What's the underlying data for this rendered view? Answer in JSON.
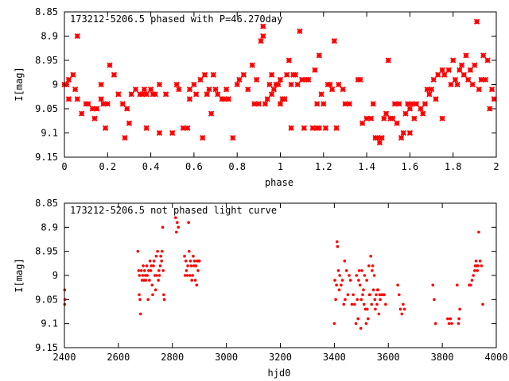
{
  "chart_data": [
    {
      "type": "scatter",
      "title": "173212-5206.5 phased with P=46.270day",
      "xlabel": "phase",
      "ylabel": "I[mag]",
      "xlim": [
        0,
        2
      ],
      "ylim": [
        8.85,
        9.15
      ],
      "y_inverted": true,
      "grid": false,
      "color": "#ff0000",
      "marker": "asterisk",
      "xticks": [
        0,
        0.2,
        0.4,
        0.6,
        0.8,
        1,
        1.2,
        1.4,
        1.6,
        1.8,
        2
      ],
      "xtick_labels": [
        "0",
        "0.2",
        "0.4",
        "0.6",
        "0.8",
        "1",
        "1.2",
        "1.4",
        "1.6",
        "1.8",
        "2"
      ],
      "yticks": [
        8.85,
        8.9,
        8.95,
        9,
        9.05,
        9.1,
        9.15
      ],
      "ytick_labels": [
        "8.85",
        "8.9",
        "8.95",
        "9",
        "9.05",
        "9.1",
        "9.15"
      ],
      "points": [
        [
          0.0,
          9.0
        ],
        [
          0.01,
          9.0
        ],
        [
          0.02,
          8.99
        ],
        [
          0.02,
          9.03
        ],
        [
          0.04,
          8.98
        ],
        [
          0.05,
          9.01
        ],
        [
          0.06,
          8.9
        ],
        [
          0.06,
          9.03
        ],
        [
          0.08,
          9.06
        ],
        [
          0.1,
          9.04
        ],
        [
          0.11,
          9.04
        ],
        [
          0.13,
          9.05
        ],
        [
          0.14,
          9.07
        ],
        [
          0.15,
          9.05
        ],
        [
          0.17,
          9.0
        ],
        [
          0.17,
          9.03
        ],
        [
          0.18,
          9.04
        ],
        [
          0.19,
          9.09
        ],
        [
          0.2,
          9.04
        ],
        [
          0.21,
          8.96
        ],
        [
          0.23,
          8.98
        ],
        [
          0.25,
          9.02
        ],
        [
          0.27,
          9.04
        ],
        [
          0.28,
          9.11
        ],
        [
          0.29,
          9.05
        ],
        [
          0.3,
          9.08
        ],
        [
          0.31,
          9.02
        ],
        [
          0.33,
          9.01
        ],
        [
          0.35,
          9.02
        ],
        [
          0.36,
          9.02
        ],
        [
          0.37,
          9.01
        ],
        [
          0.38,
          9.09
        ],
        [
          0.38,
          9.02
        ],
        [
          0.4,
          9.01
        ],
        [
          0.41,
          9.02
        ],
        [
          0.42,
          9.02
        ],
        [
          0.44,
          9.0
        ],
        [
          0.44,
          9.1
        ],
        [
          0.47,
          9.02
        ],
        [
          0.5,
          9.1
        ],
        [
          0.52,
          9.0
        ],
        [
          0.53,
          9.01
        ],
        [
          0.55,
          9.09
        ],
        [
          0.57,
          9.09
        ],
        [
          0.58,
          9.01
        ],
        [
          0.58,
          9.03
        ],
        [
          0.6,
          9.0
        ],
        [
          0.61,
          9.02
        ],
        [
          0.63,
          8.99
        ],
        [
          0.64,
          9.11
        ],
        [
          0.65,
          8.98
        ],
        [
          0.66,
          9.02
        ],
        [
          0.67,
          9.01
        ],
        [
          0.68,
          9.06
        ],
        [
          0.69,
          8.98
        ],
        [
          0.7,
          9.01
        ],
        [
          0.71,
          9.02
        ],
        [
          0.73,
          9.03
        ],
        [
          0.74,
          9.03
        ],
        [
          0.75,
          9.01
        ],
        [
          0.76,
          9.03
        ],
        [
          0.78,
          9.11
        ],
        [
          0.8,
          9.0
        ],
        [
          0.81,
          8.99
        ],
        [
          0.83,
          8.98
        ],
        [
          0.85,
          9.01
        ],
        [
          0.87,
          8.96
        ],
        [
          0.88,
          9.04
        ],
        [
          0.89,
          8.99
        ],
        [
          0.9,
          9.04
        ],
        [
          0.91,
          8.91
        ],
        [
          0.92,
          8.88
        ],
        [
          0.92,
          8.9
        ],
        [
          0.93,
          9.04
        ],
        [
          0.94,
          9.03
        ],
        [
          0.95,
          9.0
        ],
        [
          0.96,
          8.98
        ],
        [
          0.96,
          9.02
        ],
        [
          0.97,
          9.01
        ],
        [
          0.98,
          9.0
        ],
        [
          0.99,
          9.0
        ],
        [
          1.0,
          8.99
        ],
        [
          1.0,
          9.04
        ],
        [
          1.01,
          9.03
        ],
        [
          1.02,
          9.03
        ],
        [
          1.03,
          8.98
        ],
        [
          1.04,
          8.95
        ],
        [
          1.05,
          9.09
        ],
        [
          1.05,
          9.0
        ],
        [
          1.06,
          8.98
        ],
        [
          1.07,
          8.98
        ],
        [
          1.08,
          9.0
        ],
        [
          1.09,
          8.89
        ],
        [
          1.1,
          8.99
        ],
        [
          1.11,
          9.09
        ],
        [
          1.12,
          8.99
        ],
        [
          1.13,
          8.99
        ],
        [
          1.15,
          9.09
        ],
        [
          1.16,
          8.97
        ],
        [
          1.17,
          9.09
        ],
        [
          1.17,
          9.04
        ],
        [
          1.18,
          9.09
        ],
        [
          1.18,
          8.94
        ],
        [
          1.19,
          9.02
        ],
        [
          1.2,
          9.04
        ],
        [
          1.21,
          9.09
        ],
        [
          1.22,
          9.0
        ],
        [
          1.23,
          9.0
        ],
        [
          1.24,
          9.01
        ],
        [
          1.25,
          8.91
        ],
        [
          1.26,
          9.09
        ],
        [
          1.27,
          9.0
        ],
        [
          1.29,
          9.01
        ],
        [
          1.3,
          9.04
        ],
        [
          1.32,
          9.04
        ],
        [
          1.36,
          8.99
        ],
        [
          1.37,
          8.99
        ],
        [
          1.38,
          9.08
        ],
        [
          1.4,
          9.07
        ],
        [
          1.42,
          9.07
        ],
        [
          1.43,
          9.04
        ],
        [
          1.44,
          9.11
        ],
        [
          1.45,
          9.11
        ],
        [
          1.46,
          9.12
        ],
        [
          1.47,
          9.11
        ],
        [
          1.48,
          9.07
        ],
        [
          1.49,
          9.06
        ],
        [
          1.5,
          8.95
        ],
        [
          1.51,
          9.07
        ],
        [
          1.52,
          9.07
        ],
        [
          1.53,
          9.04
        ],
        [
          1.54,
          9.08
        ],
        [
          1.55,
          9.04
        ],
        [
          1.56,
          9.11
        ],
        [
          1.57,
          9.1
        ],
        [
          1.58,
          9.06
        ],
        [
          1.59,
          9.04
        ],
        [
          1.6,
          9.05
        ],
        [
          1.6,
          9.1
        ],
        [
          1.61,
          9.04
        ],
        [
          1.62,
          9.07
        ],
        [
          1.63,
          9.04
        ],
        [
          1.65,
          9.05
        ],
        [
          1.66,
          9.06
        ],
        [
          1.67,
          9.04
        ],
        [
          1.68,
          9.01
        ],
        [
          1.69,
          9.02
        ],
        [
          1.7,
          9.01
        ],
        [
          1.71,
          8.99
        ],
        [
          1.72,
          9.03
        ],
        [
          1.73,
          8.98
        ],
        [
          1.75,
          8.97
        ],
        [
          1.75,
          9.07
        ],
        [
          1.76,
          8.98
        ],
        [
          1.78,
          8.97
        ],
        [
          1.79,
          9.0
        ],
        [
          1.8,
          8.95
        ],
        [
          1.81,
          8.99
        ],
        [
          1.82,
          9.0
        ],
        [
          1.83,
          8.97
        ],
        [
          1.84,
          8.96
        ],
        [
          1.85,
          8.98
        ],
        [
          1.86,
          8.94
        ],
        [
          1.87,
          8.99
        ],
        [
          1.88,
          8.97
        ],
        [
          1.89,
          9.0
        ],
        [
          1.9,
          8.96
        ],
        [
          1.91,
          8.87
        ],
        [
          1.92,
          9.01
        ],
        [
          1.93,
          8.99
        ],
        [
          1.94,
          8.94
        ],
        [
          1.95,
          8.99
        ],
        [
          1.96,
          8.95
        ],
        [
          1.97,
          9.05
        ],
        [
          1.98,
          9.01
        ],
        [
          1.99,
          9.03
        ]
      ]
    },
    {
      "type": "scatter",
      "title": "173212-5206.5 not phased light curve",
      "xlabel": "hjd0",
      "ylabel": "I[mag]",
      "xlim": [
        2400,
        4000
      ],
      "ylim": [
        8.85,
        9.15
      ],
      "y_inverted": true,
      "grid": false,
      "color": "#ff0000",
      "marker": "dot",
      "xticks": [
        2400,
        2600,
        2800,
        3000,
        3200,
        3400,
        3600,
        3800,
        4000
      ],
      "xtick_labels": [
        "2400",
        "2600",
        "2800",
        "3000",
        "3200",
        "3400",
        "3600",
        "3800",
        "4000"
      ],
      "yticks": [
        8.85,
        8.9,
        8.95,
        9,
        9.05,
        9.1,
        9.15
      ],
      "ytick_labels": [
        "8.85",
        "8.9",
        "8.95",
        "9",
        "9.05",
        "9.1",
        "9.15"
      ],
      "points": [
        [
          2401,
          9.03
        ],
        [
          2401,
          9.06
        ],
        [
          2402,
          9.05
        ],
        [
          2672,
          8.95
        ],
        [
          2675,
          8.99
        ],
        [
          2677,
          9.04
        ],
        [
          2678,
          9.0
        ],
        [
          2680,
          9.05
        ],
        [
          2682,
          9.08
        ],
        [
          2685,
          8.99
        ],
        [
          2688,
          9.01
        ],
        [
          2690,
          9.0
        ],
        [
          2692,
          8.98
        ],
        [
          2695,
          9.01
        ],
        [
          2697,
          8.99
        ],
        [
          2700,
          9.0
        ],
        [
          2702,
          9.01
        ],
        [
          2705,
          8.98
        ],
        [
          2707,
          9.0
        ],
        [
          2710,
          9.05
        ],
        [
          2712,
          8.99
        ],
        [
          2715,
          9.01
        ],
        [
          2717,
          8.97
        ],
        [
          2720,
          8.99
        ],
        [
          2722,
          8.98
        ],
        [
          2725,
          9.02
        ],
        [
          2727,
          9.04
        ],
        [
          2730,
          8.98
        ],
        [
          2732,
          8.97
        ],
        [
          2735,
          9.0
        ],
        [
          2738,
          9.03
        ],
        [
          2740,
          8.96
        ],
        [
          2742,
          9.0
        ],
        [
          2745,
          8.95
        ],
        [
          2748,
          9.01
        ],
        [
          2750,
          8.99
        ],
        [
          2752,
          9.0
        ],
        [
          2755,
          8.98
        ],
        [
          2757,
          8.96
        ],
        [
          2760,
          8.97
        ],
        [
          2762,
          8.95
        ],
        [
          2764,
          8.9
        ],
        [
          2766,
          8.99
        ],
        [
          2768,
          9.04
        ],
        [
          2770,
          9.05
        ],
        [
          2812,
          8.88
        ],
        [
          2815,
          8.91
        ],
        [
          2818,
          8.89
        ],
        [
          2822,
          8.9
        ],
        [
          2845,
          8.96
        ],
        [
          2847,
          9.0
        ],
        [
          2850,
          8.97
        ],
        [
          2852,
          8.99
        ],
        [
          2855,
          9.0
        ],
        [
          2857,
          8.98
        ],
        [
          2860,
          8.89
        ],
        [
          2862,
          8.95
        ],
        [
          2865,
          9.0
        ],
        [
          2867,
          8.97
        ],
        [
          2870,
          8.98
        ],
        [
          2872,
          9.01
        ],
        [
          2875,
          9.0
        ],
        [
          2877,
          8.96
        ],
        [
          2880,
          8.98
        ],
        [
          2882,
          8.97
        ],
        [
          2885,
          9.01
        ],
        [
          2887,
          8.98
        ],
        [
          2890,
          9.02
        ],
        [
          2892,
          8.97
        ],
        [
          2895,
          8.99
        ],
        [
          2897,
          8.97
        ],
        [
          2900,
          8.97
        ],
        [
          3400,
          9.1
        ],
        [
          3402,
          9.01
        ],
        [
          3405,
          9.05
        ],
        [
          3408,
          9.02
        ],
        [
          3410,
          8.93
        ],
        [
          3412,
          8.94
        ],
        [
          3415,
          8.99
        ],
        [
          3418,
          9.03
        ],
        [
          3420,
          9.0
        ],
        [
          3425,
          9.02
        ],
        [
          3430,
          9.01
        ],
        [
          3435,
          9.06
        ],
        [
          3438,
          8.97
        ],
        [
          3440,
          9.05
        ],
        [
          3445,
          8.99
        ],
        [
          3450,
          9.04
        ],
        [
          3455,
          9.0
        ],
        [
          3460,
          9.01
        ],
        [
          3465,
          9.06
        ],
        [
          3470,
          9.04
        ],
        [
          3475,
          9.06
        ],
        [
          3480,
          9.1
        ],
        [
          3482,
          9.0
        ],
        [
          3485,
          9.05
        ],
        [
          3488,
          9.09
        ],
        [
          3490,
          9.01
        ],
        [
          3492,
          8.99
        ],
        [
          3495,
          9.02
        ],
        [
          3498,
          9.11
        ],
        [
          3500,
          9.05
        ],
        [
          3502,
          8.99
        ],
        [
          3505,
          9.04
        ],
        [
          3508,
          9.03
        ],
        [
          3510,
          9.06
        ],
        [
          3512,
          9.0
        ],
        [
          3515,
          9.07
        ],
        [
          3518,
          9.1
        ],
        [
          3520,
          9.01
        ],
        [
          3522,
          9.07
        ],
        [
          3525,
          9.09
        ],
        [
          3528,
          8.98
        ],
        [
          3530,
          9.04
        ],
        [
          3532,
          9.04
        ],
        [
          3535,
          8.96
        ],
        [
          3538,
          9.06
        ],
        [
          3540,
          8.99
        ],
        [
          3542,
          8.98
        ],
        [
          3545,
          9.03
        ],
        [
          3548,
          9.0
        ],
        [
          3550,
          9.05
        ],
        [
          3552,
          9.07
        ],
        [
          3555,
          9.04
        ],
        [
          3558,
          9.06
        ],
        [
          3560,
          9.03
        ],
        [
          3562,
          9.03
        ],
        [
          3565,
          9.08
        ],
        [
          3568,
          9.04
        ],
        [
          3570,
          9.05
        ],
        [
          3575,
          9.04
        ],
        [
          3580,
          9.04
        ],
        [
          3585,
          9.04
        ],
        [
          3590,
          9.06
        ],
        [
          3635,
          9.02
        ],
        [
          3640,
          9.04
        ],
        [
          3645,
          9.07
        ],
        [
          3650,
          9.08
        ],
        [
          3655,
          9.06
        ],
        [
          3660,
          9.07
        ],
        [
          3765,
          9.02
        ],
        [
          3770,
          9.05
        ],
        [
          3775,
          9.1
        ],
        [
          3820,
          9.09
        ],
        [
          3825,
          9.1
        ],
        [
          3830,
          9.09
        ],
        [
          3835,
          9.1
        ],
        [
          3855,
          9.02
        ],
        [
          3860,
          9.1
        ],
        [
          3862,
          9.09
        ],
        [
          3865,
          9.07
        ],
        [
          3900,
          9.02
        ],
        [
          3905,
          9.02
        ],
        [
          3910,
          9.01
        ],
        [
          3915,
          9.0
        ],
        [
          3920,
          8.99
        ],
        [
          3922,
          8.98
        ],
        [
          3925,
          8.97
        ],
        [
          3928,
          8.98
        ],
        [
          3930,
          8.99
        ],
        [
          3932,
          8.98
        ],
        [
          3935,
          8.91
        ],
        [
          3940,
          8.97
        ],
        [
          3945,
          8.98
        ],
        [
          3950,
          9.06
        ]
      ]
    }
  ]
}
